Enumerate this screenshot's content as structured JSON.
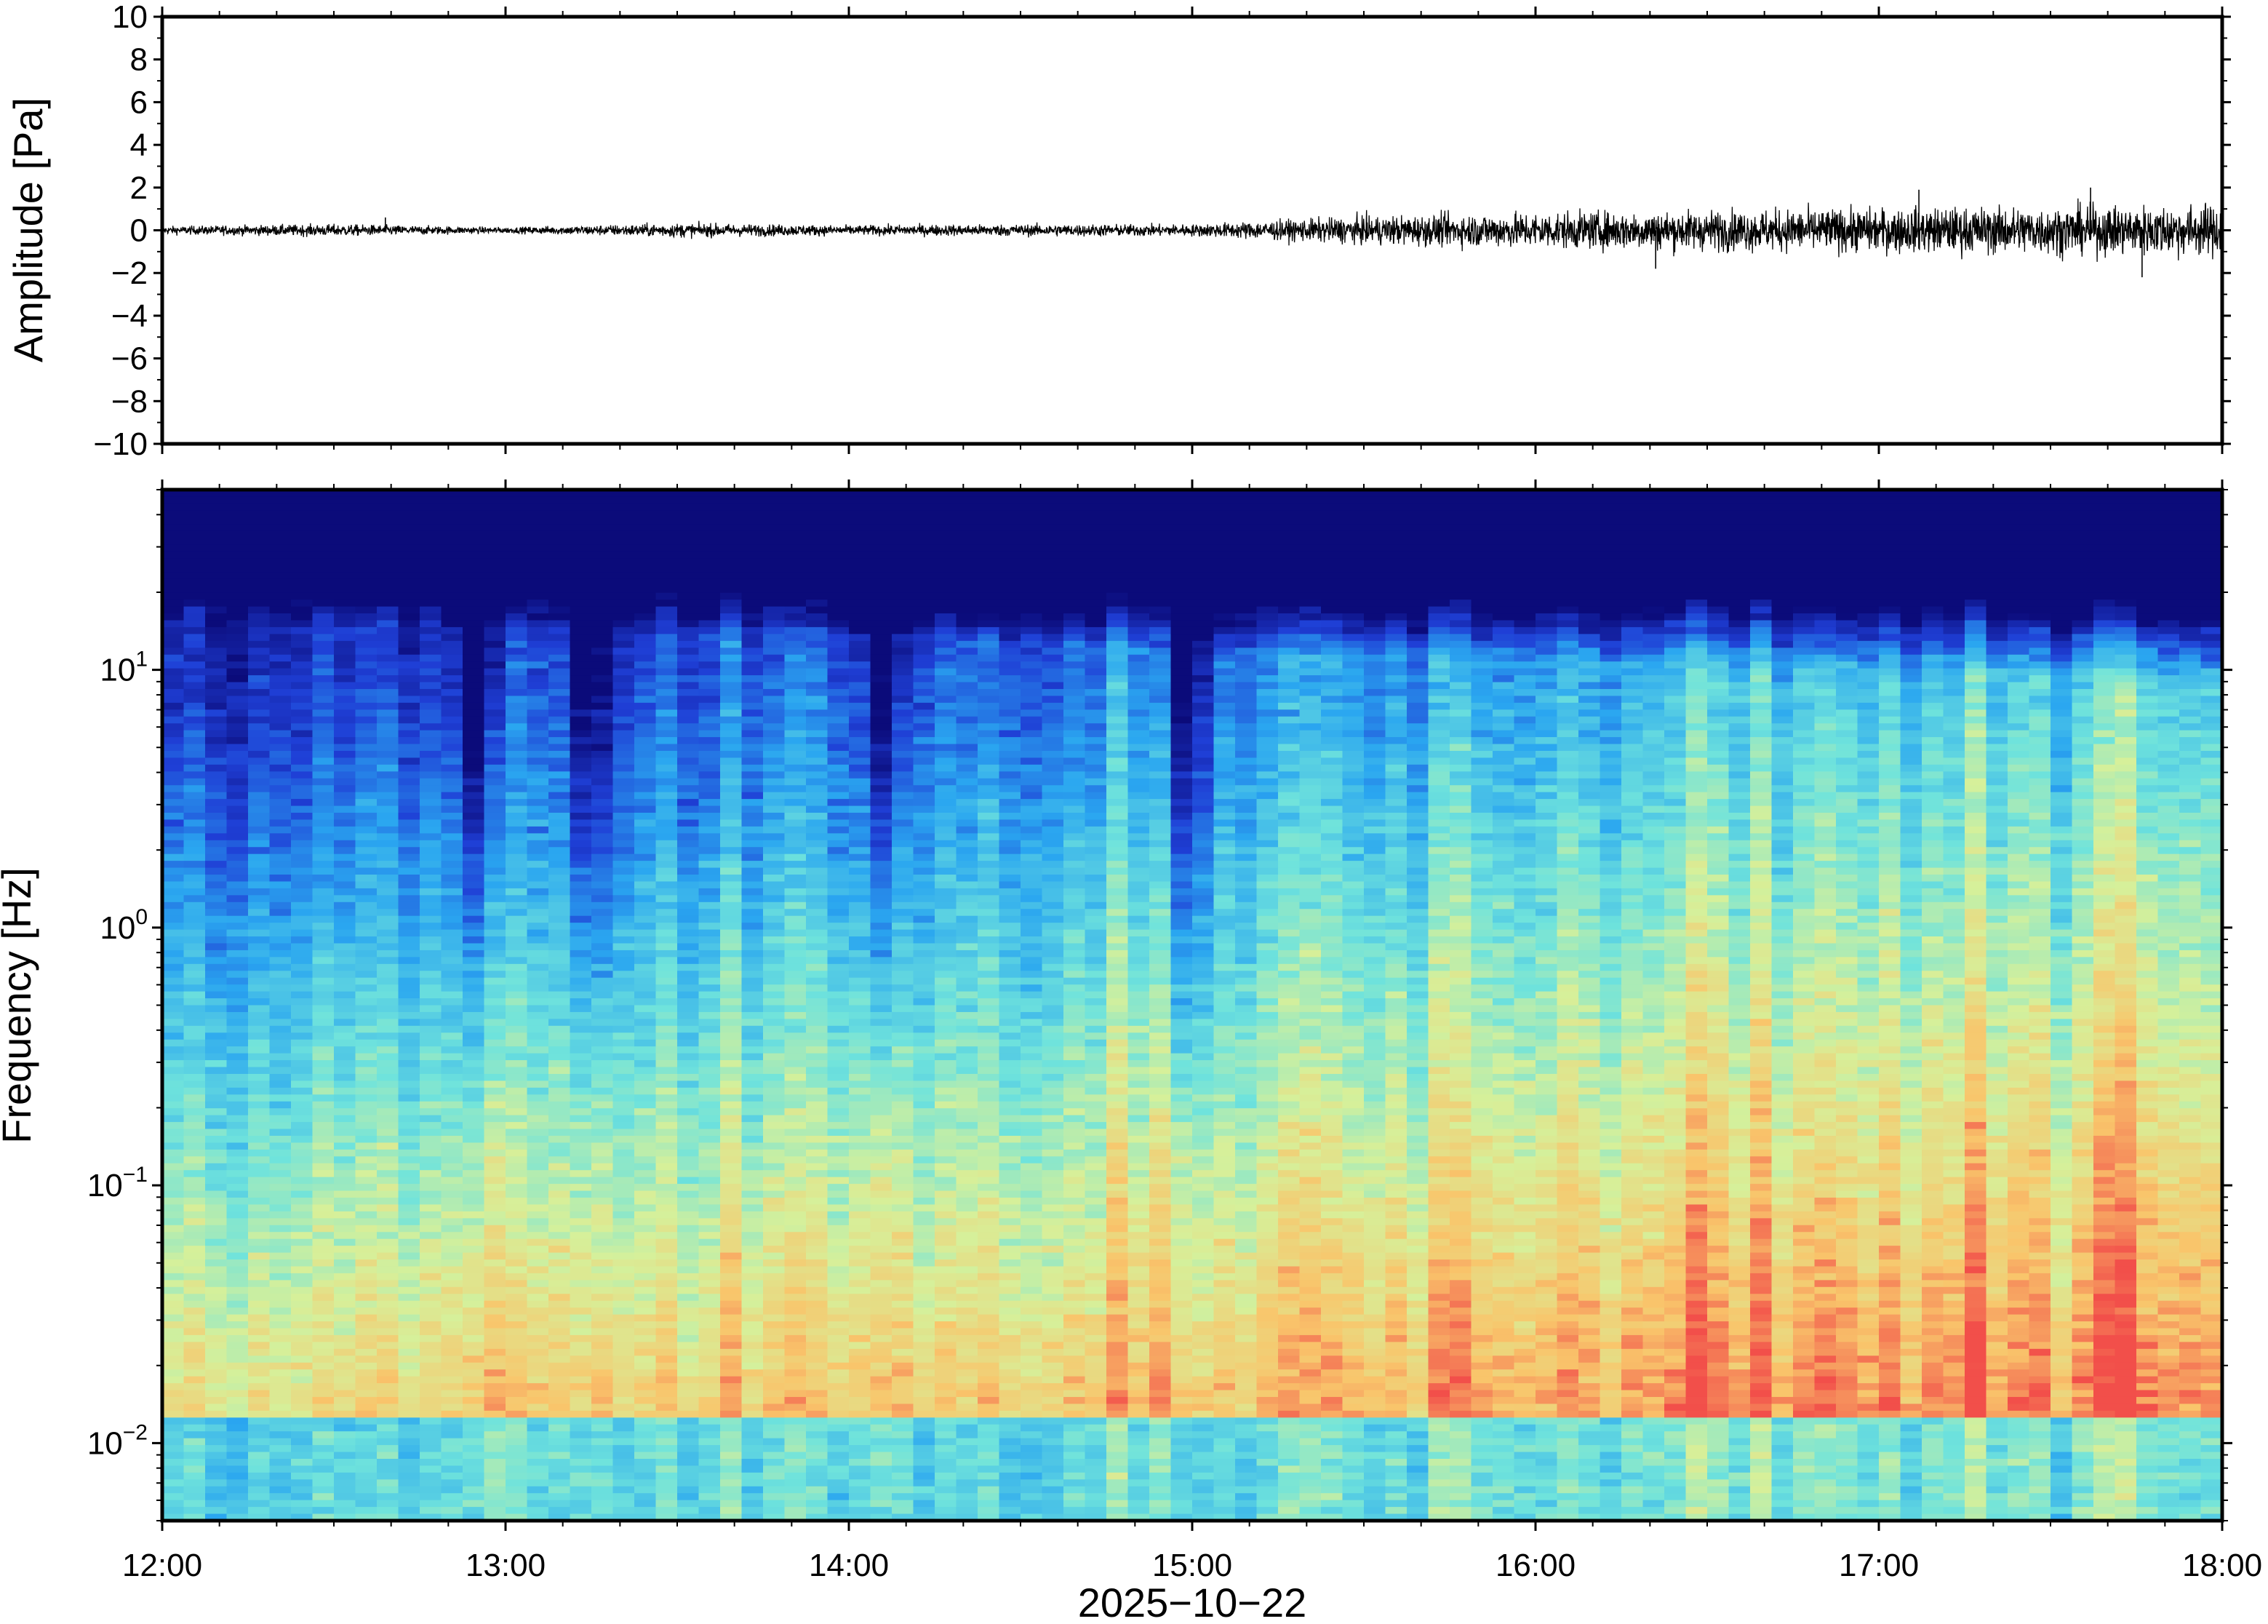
{
  "chart_data": [
    {
      "type": "line",
      "panel": "waveform",
      "ylabel": "Amplitude [Pa]",
      "ylim": [
        -10,
        10
      ],
      "yticks": [
        {
          "value": 10,
          "label": "10"
        },
        {
          "value": 8,
          "label": "8"
        },
        {
          "value": 6,
          "label": "6"
        },
        {
          "value": 4,
          "label": "4"
        },
        {
          "value": 2,
          "label": "2"
        },
        {
          "value": 0,
          "label": "0"
        },
        {
          "value": -2,
          "label": "−2"
        },
        {
          "value": -4,
          "label": "−4"
        },
        {
          "value": -6,
          "label": "−6"
        },
        {
          "value": -8,
          "label": "−8"
        },
        {
          "value": -10,
          "label": "−10"
        }
      ],
      "xlim": [
        "12:00",
        "18:00"
      ],
      "envelope": {
        "description_hours": [
          12.0,
          12.5,
          13.0,
          13.5,
          14.0,
          14.5,
          15.0,
          15.5,
          16.0,
          16.5,
          17.0,
          17.5,
          18.0
        ],
        "amplitude_pa": [
          0.2,
          0.3,
          0.15,
          0.35,
          0.25,
          0.3,
          0.3,
          0.7,
          0.9,
          1.0,
          1.1,
          1.2,
          1.3
        ]
      },
      "peaks": [
        {
          "time": "12:39",
          "value": 0.6
        },
        {
          "time": "16:21",
          "value": -1.8
        },
        {
          "time": "17:07",
          "value": 1.9
        },
        {
          "time": "17:37",
          "value": 2.0
        },
        {
          "time": "17:46",
          "value": -2.2
        }
      ]
    },
    {
      "type": "heatmap",
      "panel": "spectrogram",
      "ylabel": "Frequency [Hz]",
      "yscale": "log",
      "ylim": [
        0.005,
        50
      ],
      "yticks": [
        {
          "value": 0.01,
          "base": "10",
          "exp": "−2"
        },
        {
          "value": 0.1,
          "base": "10",
          "exp": "−1"
        },
        {
          "value": 1,
          "base": "10",
          "exp": "0"
        },
        {
          "value": 10,
          "base": "10",
          "exp": "1"
        }
      ],
      "xlabel": "2025−10−22",
      "xticks": [
        "12:00",
        "13:00",
        "14:00",
        "15:00",
        "16:00",
        "17:00",
        "18:00"
      ],
      "xlim": [
        "12:00",
        "18:00"
      ],
      "colormap": "jet",
      "colormap_stops": [
        "#0b0b7a",
        "#1f3fd6",
        "#2aa6f0",
        "#6fe3dc",
        "#d6f09a",
        "#f9c56b",
        "#f24f4a"
      ]
    }
  ]
}
